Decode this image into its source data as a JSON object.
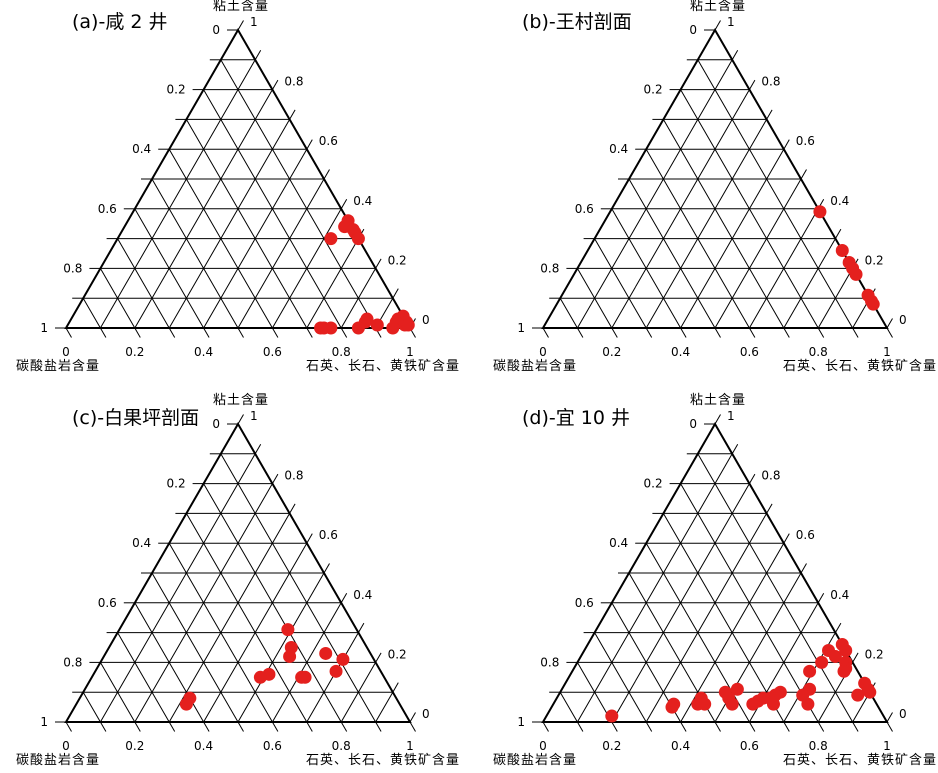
{
  "chart_data": [
    {
      "type": "ternary-scatter",
      "title": "(a)-咸 2 井",
      "apex_top_label": "粘土含量",
      "apex_left_label": "碳酸盐岩含量",
      "apex_right_label": "石英、长石、黄铁矿含量",
      "tick_labels": [
        "0",
        "0.2",
        "0.4",
        "0.6",
        "0.8",
        "1"
      ],
      "point_color": "#e4201e",
      "points": [
        {
          "clay": 0.36,
          "carb": 0.0
        },
        {
          "clay": 0.34,
          "carb": 0.02
        },
        {
          "clay": 0.33,
          "carb": 0.0
        },
        {
          "clay": 0.32,
          "carb": 0.0
        },
        {
          "clay": 0.3,
          "carb": 0.0
        },
        {
          "clay": 0.3,
          "carb": 0.08
        },
        {
          "clay": 0.04,
          "carb": 0.0
        },
        {
          "clay": 0.03,
          "carb": 0.02
        },
        {
          "clay": 0.02,
          "carb": 0.03
        },
        {
          "clay": 0.01,
          "carb": 0.01
        },
        {
          "clay": 0.02,
          "carb": 0.0
        },
        {
          "clay": 0.01,
          "carb": 0.0
        },
        {
          "clay": 0.0,
          "carb": 0.05
        },
        {
          "clay": 0.01,
          "carb": 0.09
        },
        {
          "clay": 0.03,
          "carb": 0.11
        },
        {
          "clay": 0.02,
          "carb": 0.12
        },
        {
          "clay": 0.0,
          "carb": 0.15
        },
        {
          "clay": 0.0,
          "carb": 0.23
        },
        {
          "clay": 0.0,
          "carb": 0.25
        },
        {
          "clay": 0.0,
          "carb": 0.26
        }
      ]
    },
    {
      "type": "ternary-scatter",
      "title": "(b)-王村剖面",
      "apex_top_label": "粘土含量",
      "apex_left_label": "碳酸盐岩含量",
      "apex_right_label": "石英、长石、黄铁矿含量",
      "tick_labels": [
        "0",
        "0.2",
        "0.4",
        "0.6",
        "0.8",
        "1"
      ],
      "point_color": "#e4201e",
      "points": [
        {
          "clay": 0.39,
          "carb": 0.0
        },
        {
          "clay": 0.26,
          "carb": 0.0
        },
        {
          "clay": 0.22,
          "carb": 0.0
        },
        {
          "clay": 0.2,
          "carb": 0.0
        },
        {
          "clay": 0.18,
          "carb": 0.0
        },
        {
          "clay": 0.11,
          "carb": 0.0
        },
        {
          "clay": 0.09,
          "carb": 0.0
        },
        {
          "clay": 0.08,
          "carb": 0.0
        }
      ]
    },
    {
      "type": "ternary-scatter",
      "title": "(c)-白果坪剖面",
      "apex_top_label": "粘土含量",
      "apex_left_label": "碳酸盐岩含量",
      "apex_right_label": "石英、长石、黄铁矿含量",
      "tick_labels": [
        "0",
        "0.2",
        "0.4",
        "0.6",
        "0.8",
        "1"
      ],
      "point_color": "#e4201e",
      "points": [
        {
          "clay": 0.31,
          "carb": 0.2
        },
        {
          "clay": 0.25,
          "carb": 0.22
        },
        {
          "clay": 0.23,
          "carb": 0.13
        },
        {
          "clay": 0.22,
          "carb": 0.24
        },
        {
          "clay": 0.21,
          "carb": 0.09
        },
        {
          "clay": 0.17,
          "carb": 0.13
        },
        {
          "clay": 0.15,
          "carb": 0.23
        },
        {
          "clay": 0.15,
          "carb": 0.24
        },
        {
          "clay": 0.16,
          "carb": 0.33
        },
        {
          "clay": 0.15,
          "carb": 0.36
        },
        {
          "clay": 0.08,
          "carb": 0.6
        },
        {
          "clay": 0.06,
          "carb": 0.62
        }
      ]
    },
    {
      "type": "ternary-scatter",
      "title": "(d)-宜 10 井",
      "apex_top_label": "粘土含量",
      "apex_left_label": "碳酸盐岩含量",
      "apex_right_label": "石英、长石、黄铁矿含量",
      "tick_labels": [
        "0",
        "0.2",
        "0.4",
        "0.6",
        "0.8",
        "1"
      ],
      "point_color": "#e4201e",
      "points": [
        {
          "clay": 0.26,
          "carb": 0.0
        },
        {
          "clay": 0.24,
          "carb": 0.05
        },
        {
          "clay": 0.24,
          "carb": 0.0
        },
        {
          "clay": 0.22,
          "carb": 0.04
        },
        {
          "clay": 0.2,
          "carb": 0.02
        },
        {
          "clay": 0.18,
          "carb": 0.03
        },
        {
          "clay": 0.17,
          "carb": 0.04
        },
        {
          "clay": 0.2,
          "carb": 0.09
        },
        {
          "clay": 0.17,
          "carb": 0.14
        },
        {
          "clay": 0.13,
          "carb": 0.0
        },
        {
          "clay": 0.11,
          "carb": 0.0
        },
        {
          "clay": 0.1,
          "carb": 0.0
        },
        {
          "clay": 0.09,
          "carb": 0.04
        },
        {
          "clay": 0.11,
          "carb": 0.17
        },
        {
          "clay": 0.09,
          "carb": 0.2
        },
        {
          "clay": 0.06,
          "carb": 0.2
        },
        {
          "clay": 0.1,
          "carb": 0.26
        },
        {
          "clay": 0.09,
          "carb": 0.28
        },
        {
          "clay": 0.08,
          "carb": 0.3
        },
        {
          "clay": 0.08,
          "carb": 0.32
        },
        {
          "clay": 0.06,
          "carb": 0.3
        },
        {
          "clay": 0.07,
          "carb": 0.34
        },
        {
          "clay": 0.06,
          "carb": 0.36
        },
        {
          "clay": 0.11,
          "carb": 0.38
        },
        {
          "clay": 0.1,
          "carb": 0.42
        },
        {
          "clay": 0.08,
          "carb": 0.42
        },
        {
          "clay": 0.06,
          "carb": 0.42
        },
        {
          "clay": 0.08,
          "carb": 0.5
        },
        {
          "clay": 0.06,
          "carb": 0.5
        },
        {
          "clay": 0.06,
          "carb": 0.52
        },
        {
          "clay": 0.06,
          "carb": 0.59
        },
        {
          "clay": 0.05,
          "carb": 0.6
        },
        {
          "clay": 0.02,
          "carb": 0.79
        }
      ]
    }
  ]
}
